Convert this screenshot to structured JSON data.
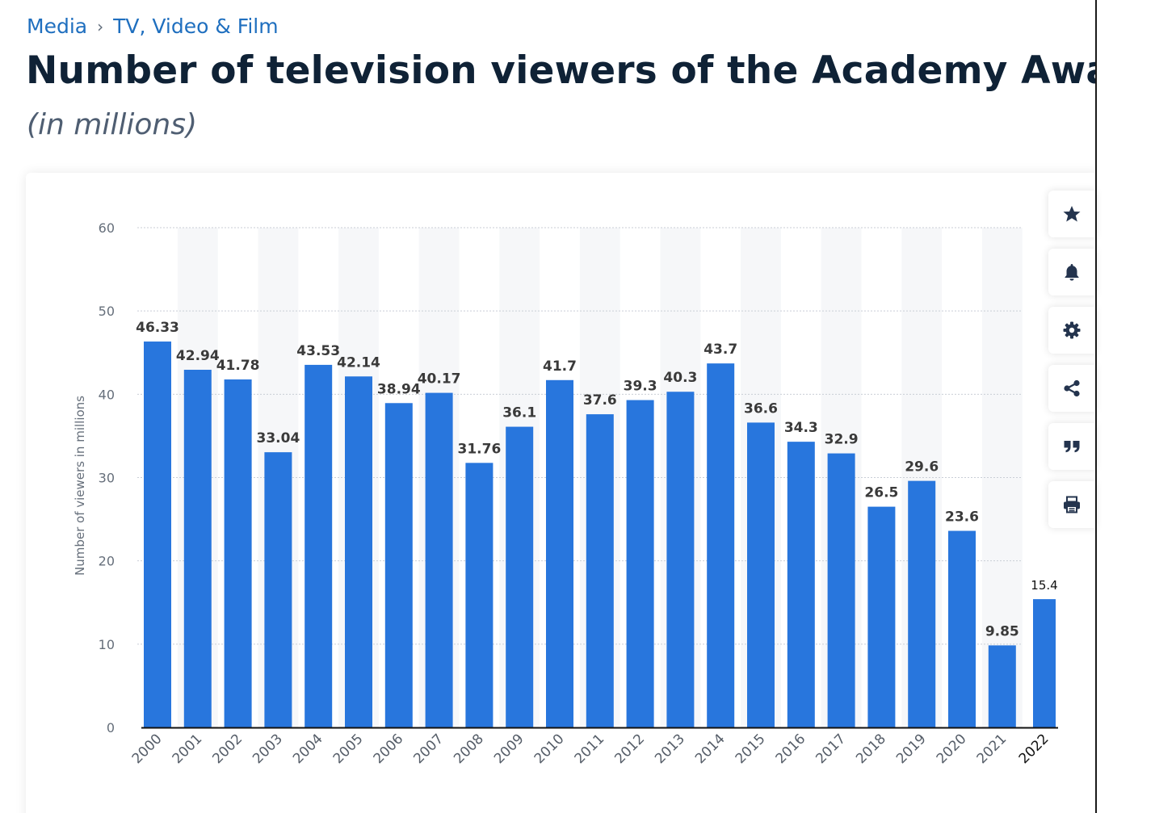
{
  "breadcrumb": {
    "category": "Media",
    "separator": "›",
    "subcategory": "TV, Video & Film"
  },
  "page": {
    "title": "Number of television viewers of the Academy Awards ceremony",
    "subtitle": "(in millions)"
  },
  "toolbar": {
    "icons": [
      "star-icon",
      "bell-icon",
      "gear-icon",
      "share-icon",
      "quote-icon",
      "print-icon"
    ]
  },
  "colors": {
    "bar": "#2876dd",
    "accent": "#1f6fbf",
    "title": "#0f2236"
  },
  "chart_data": {
    "type": "bar",
    "title": "Number of television viewers of the Academy Awards ceremony",
    "xlabel": "",
    "ylabel": "Number of viewers in millions",
    "ylim": [
      0,
      60
    ],
    "yticks": [
      0,
      10,
      20,
      30,
      40,
      50,
      60
    ],
    "grid": true,
    "categories": [
      "2000",
      "2001",
      "2002",
      "2003",
      "2004",
      "2005",
      "2006",
      "2007",
      "2008",
      "2009",
      "2010",
      "2011",
      "2012",
      "2013",
      "2014",
      "2015",
      "2016",
      "2017",
      "2018",
      "2019",
      "2020",
      "2021",
      "2022"
    ],
    "values": [
      46.33,
      42.94,
      41.78,
      33.04,
      43.53,
      42.14,
      38.94,
      40.17,
      31.76,
      36.1,
      41.7,
      37.6,
      39.3,
      40.3,
      43.7,
      36.6,
      34.3,
      32.9,
      26.5,
      29.6,
      23.6,
      9.85,
      15.4
    ],
    "labels": [
      "46.33",
      "42.94",
      "41.78",
      "33.04",
      "43.53",
      "42.14",
      "38.94",
      "40.17",
      "31.76",
      "36.1",
      "41.7",
      "37.6",
      "39.3",
      "40.3",
      "43.7",
      "36.6",
      "34.3",
      "32.9",
      "26.5",
      "29.6",
      "23.6",
      "9.85",
      "15.4"
    ]
  }
}
